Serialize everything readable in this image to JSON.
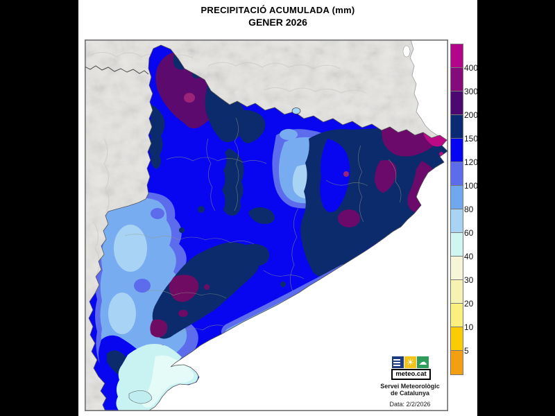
{
  "title": {
    "line1": "PRECIPITACIÓ ACUMULADA (mm)",
    "line2": "GENER 2026"
  },
  "legend": {
    "boundary_labels": [
      "400",
      "300",
      "200",
      "150",
      "120",
      "100",
      "80",
      "60",
      "40",
      "30",
      "20",
      "10",
      "5"
    ],
    "cell_colors_top_to_bottom": [
      "#B2058C",
      "#860B7A",
      "#4A0870",
      "#0B2A74",
      "#0505F2",
      "#5C6CEC",
      "#6FA8EC",
      "#A9D3F2",
      "#CFF6F0",
      "#F6F5D8",
      "#F6F2B2",
      "#FBF07E",
      "#FBCB06",
      "#F49E12"
    ]
  },
  "branding": {
    "logo_text": "meteo.cat",
    "org_line1": "Servei Meteorològic",
    "org_line2": "de Catalunya",
    "date_text": "Data: 2/2/2026"
  },
  "map_colors": {
    "sea": "#FFFFFF",
    "land_outside": "#E7E6E3",
    "precip_120_150": "#0806F0",
    "precip_100_120": "#5C6CEC",
    "precip_80_100": "#78ACF0",
    "precip_60_80": "#A9D3F4",
    "precip_40_60": "#C9F2F2",
    "precip_150_200": "#0C2B6C",
    "precip_200_300": "#5C0A6E",
    "precip_300_400": "#700B64",
    "precip_over_400": "#BC0A86"
  }
}
